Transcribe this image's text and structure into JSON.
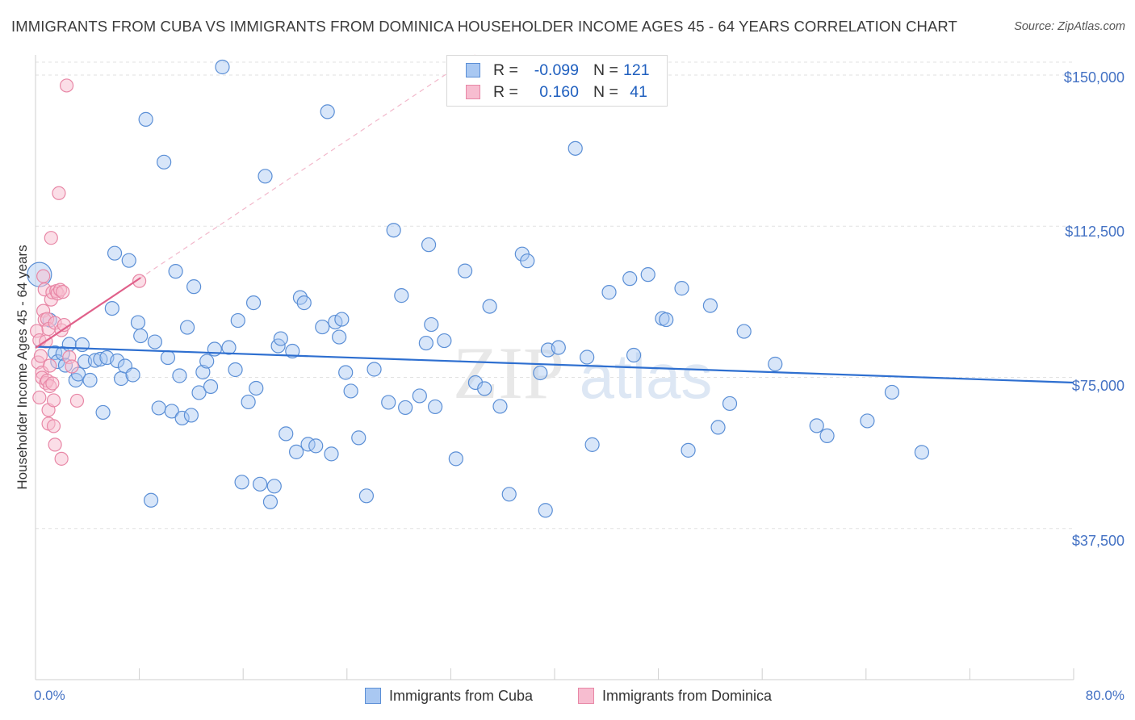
{
  "title": "IMMIGRANTS FROM CUBA VS IMMIGRANTS FROM DOMINICA HOUSEHOLDER INCOME AGES 45 - 64 YEARS CORRELATION CHART",
  "source": "Source: ZipAtlas.com",
  "watermark": {
    "zip": "ZIP",
    "atlas": "atlas"
  },
  "legend": {
    "rows": [
      {
        "r_label": "R =",
        "r_value": "-0.099",
        "n_label": "N =",
        "n_value": "121",
        "color": "#a9c8f2",
        "stroke": "#5b8fd6"
      },
      {
        "r_label": "R =",
        "r_value": "0.160",
        "n_label": "N =",
        "n_value": "41",
        "color": "#f7bdd0",
        "stroke": "#e887a6"
      }
    ]
  },
  "bottom_legend": {
    "cuba": "Immigrants from Cuba",
    "dominica": "Immigrants from Dominica"
  },
  "chart_data": {
    "type": "scatter",
    "title": "IMMIGRANTS FROM CUBA VS IMMIGRANTS FROM DOMINICA HOUSEHOLDER INCOME AGES 45 - 64 YEARS CORRELATION CHART",
    "xlabel": "",
    "ylabel": "Householder Income Ages 45 - 64 years",
    "xlim": [
      0,
      80
    ],
    "ylim": [
      0,
      155000
    ],
    "x_tick_labels": [
      "0.0%",
      "80.0%"
    ],
    "y_ticks": [
      37500,
      75000,
      112500,
      150000
    ],
    "y_tick_labels": [
      "$37,500",
      "$75,000",
      "$112,500",
      "$150,000"
    ],
    "grid": true,
    "legend_placement": "bottom",
    "colors": {
      "cuba": "#5b8fd6",
      "cuba_fill": "#a9c8f2",
      "dominica": "#e887a6",
      "dominica_fill": "#f7bdd0",
      "cuba_line": "#2e6fd0",
      "dominica_line": "#e0608a"
    },
    "series": [
      {
        "name": "Immigrants from Cuba",
        "trend": {
          "x": [
            0,
            80
          ],
          "y": [
            82600,
            73700
          ]
        },
        "points": [
          [
            0.3,
            100500
          ],
          [
            1.1,
            89200
          ],
          [
            1.5,
            81100
          ],
          [
            1.7,
            78900
          ],
          [
            2.1,
            80900
          ],
          [
            2.3,
            78000
          ],
          [
            2.6,
            83200
          ],
          [
            3.1,
            74300
          ],
          [
            3.3,
            75800
          ],
          [
            3.6,
            83100
          ],
          [
            3.8,
            78900
          ],
          [
            4.2,
            74300
          ],
          [
            4.6,
            79200
          ],
          [
            5.0,
            79500
          ],
          [
            5.2,
            66300
          ],
          [
            5.5,
            79900
          ],
          [
            5.9,
            92100
          ],
          [
            6.1,
            105800
          ],
          [
            6.3,
            79100
          ],
          [
            6.6,
            74700
          ],
          [
            6.9,
            77800
          ],
          [
            7.2,
            104000
          ],
          [
            7.5,
            75600
          ],
          [
            7.9,
            88600
          ],
          [
            8.1,
            85300
          ],
          [
            8.5,
            139000
          ],
          [
            8.9,
            44500
          ],
          [
            9.2,
            83800
          ],
          [
            9.5,
            67400
          ],
          [
            9.9,
            128400
          ],
          [
            10.2,
            79900
          ],
          [
            10.5,
            66600
          ],
          [
            10.8,
            101300
          ],
          [
            11.1,
            75400
          ],
          [
            11.3,
            64900
          ],
          [
            11.7,
            87400
          ],
          [
            12.0,
            65600
          ],
          [
            12.2,
            97500
          ],
          [
            12.6,
            71200
          ],
          [
            12.9,
            76300
          ],
          [
            13.2,
            79000
          ],
          [
            13.5,
            72700
          ],
          [
            13.8,
            82000
          ],
          [
            14.4,
            152000
          ],
          [
            14.9,
            82400
          ],
          [
            15.4,
            76900
          ],
          [
            15.6,
            89100
          ],
          [
            15.9,
            49000
          ],
          [
            16.4,
            68900
          ],
          [
            16.8,
            93500
          ],
          [
            17.0,
            72300
          ],
          [
            17.3,
            48500
          ],
          [
            17.7,
            124900
          ],
          [
            18.1,
            44100
          ],
          [
            18.4,
            48000
          ],
          [
            18.7,
            82800
          ],
          [
            18.9,
            84600
          ],
          [
            19.3,
            61000
          ],
          [
            19.8,
            81500
          ],
          [
            20.1,
            56500
          ],
          [
            20.4,
            94800
          ],
          [
            20.7,
            93500
          ],
          [
            21.0,
            58400
          ],
          [
            21.6,
            58000
          ],
          [
            22.1,
            87500
          ],
          [
            22.5,
            140900
          ],
          [
            22.8,
            56000
          ],
          [
            23.1,
            88700
          ],
          [
            23.4,
            85000
          ],
          [
            23.6,
            89400
          ],
          [
            23.9,
            76200
          ],
          [
            24.3,
            71600
          ],
          [
            24.9,
            60000
          ],
          [
            25.5,
            45600
          ],
          [
            26.1,
            77000
          ],
          [
            27.2,
            68800
          ],
          [
            27.6,
            111500
          ],
          [
            28.2,
            95300
          ],
          [
            28.5,
            67500
          ],
          [
            29.6,
            70400
          ],
          [
            30.1,
            83500
          ],
          [
            30.3,
            107900
          ],
          [
            30.5,
            88100
          ],
          [
            30.8,
            67700
          ],
          [
            31.5,
            84100
          ],
          [
            32.4,
            54800
          ],
          [
            33.1,
            101400
          ],
          [
            33.9,
            73700
          ],
          [
            34.6,
            72200
          ],
          [
            35.0,
            92600
          ],
          [
            35.8,
            67800
          ],
          [
            36.5,
            46000
          ],
          [
            37.5,
            105600
          ],
          [
            37.9,
            103900
          ],
          [
            38.9,
            76100
          ],
          [
            39.3,
            42000
          ],
          [
            39.5,
            81800
          ],
          [
            40.3,
            82400
          ],
          [
            41.6,
            131800
          ],
          [
            42.5,
            80000
          ],
          [
            42.9,
            58300
          ],
          [
            44.2,
            96100
          ],
          [
            45.8,
            99500
          ],
          [
            46.1,
            80500
          ],
          [
            47.2,
            100500
          ],
          [
            48.3,
            89600
          ],
          [
            48.6,
            89300
          ],
          [
            49.8,
            97100
          ],
          [
            50.3,
            56900
          ],
          [
            52.0,
            92800
          ],
          [
            52.6,
            62600
          ],
          [
            53.5,
            68500
          ],
          [
            54.6,
            86400
          ],
          [
            57.0,
            78300
          ],
          [
            60.2,
            63000
          ],
          [
            64.1,
            64200
          ],
          [
            66.0,
            71300
          ],
          [
            68.3,
            56400
          ],
          [
            61.0,
            60500
          ]
        ]
      },
      {
        "name": "Immigrants from Dominica",
        "trend": {
          "x": [
            0,
            8.1
          ],
          "y": [
            82300,
            99700
          ]
        },
        "trend_extended": {
          "x": [
            0,
            80
          ],
          "y": [
            82300,
            254000
          ]
        },
        "points": [
          [
            0.1,
            86500
          ],
          [
            0.2,
            78700
          ],
          [
            0.3,
            84200
          ],
          [
            0.4,
            80300
          ],
          [
            0.5,
            76200
          ],
          [
            0.5,
            74900
          ],
          [
            0.6,
            100100
          ],
          [
            0.6,
            91500
          ],
          [
            0.7,
            96800
          ],
          [
            0.7,
            89300
          ],
          [
            0.8,
            83900
          ],
          [
            0.8,
            73600
          ],
          [
            0.9,
            89500
          ],
          [
            0.9,
            74200
          ],
          [
            1.0,
            87000
          ],
          [
            1.0,
            66900
          ],
          [
            1.0,
            63500
          ],
          [
            1.1,
            72800
          ],
          [
            1.1,
            77900
          ],
          [
            1.2,
            109600
          ],
          [
            1.2,
            94300
          ],
          [
            1.3,
            96100
          ],
          [
            1.3,
            73500
          ],
          [
            1.4,
            69300
          ],
          [
            1.4,
            62900
          ],
          [
            1.5,
            88500
          ],
          [
            1.5,
            58300
          ],
          [
            1.6,
            96400
          ],
          [
            1.7,
            95800
          ],
          [
            1.8,
            120700
          ],
          [
            1.9,
            96700
          ],
          [
            2.0,
            86700
          ],
          [
            2.0,
            54800
          ],
          [
            2.1,
            96200
          ],
          [
            2.2,
            88000
          ],
          [
            2.4,
            147400
          ],
          [
            2.6,
            80000
          ],
          [
            2.8,
            77700
          ],
          [
            3.2,
            69200
          ],
          [
            8.0,
            98900
          ],
          [
            0.3,
            70000
          ]
        ]
      }
    ]
  }
}
